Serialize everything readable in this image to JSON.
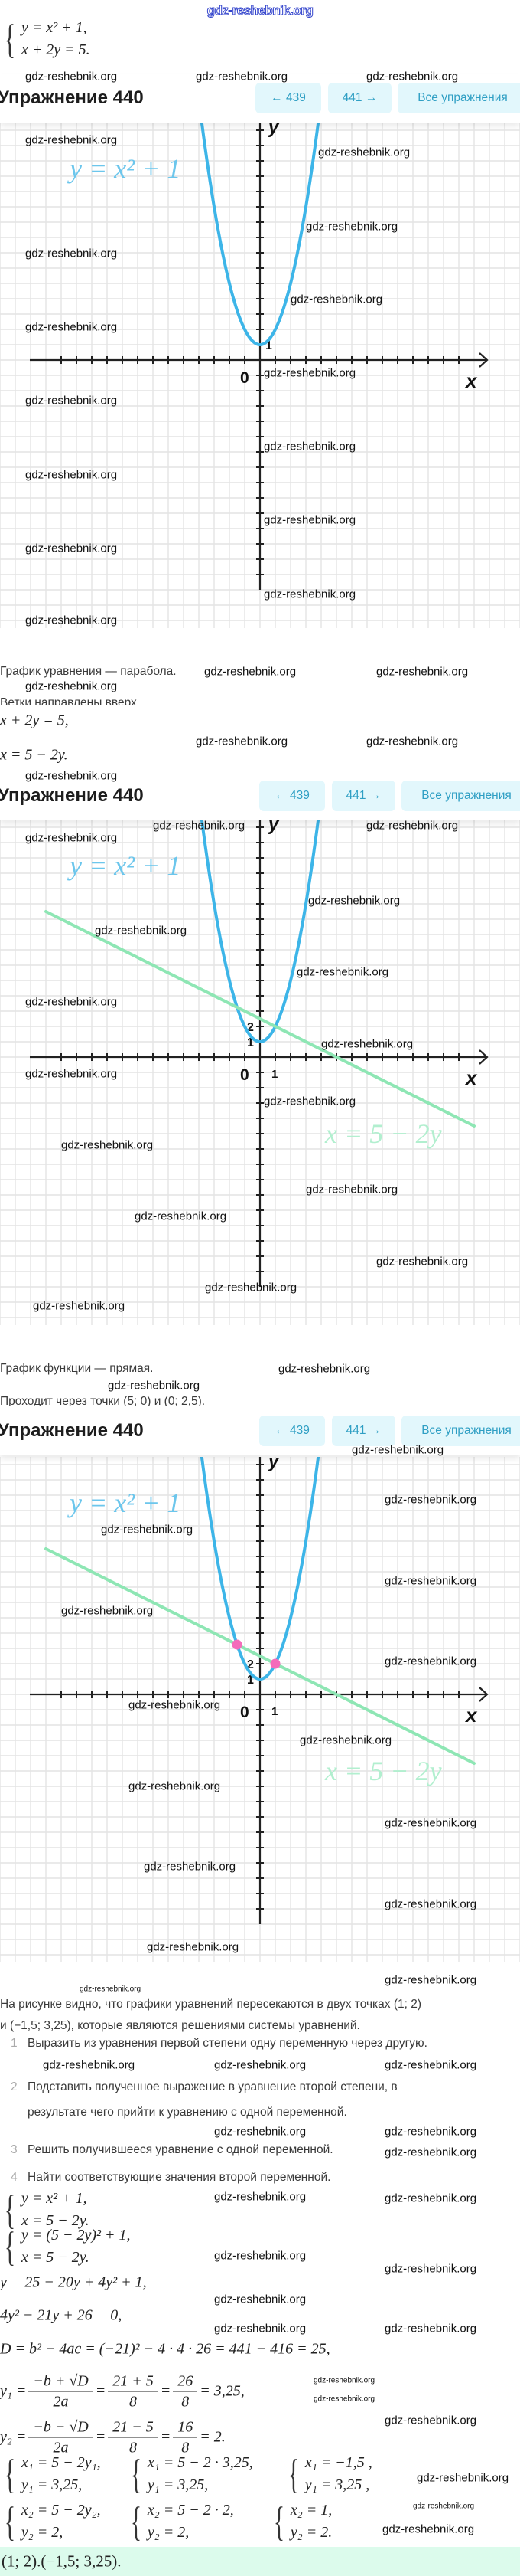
{
  "watermark": {
    "text": "gdz-reshebnik.org",
    "top_color": "#3344cc"
  },
  "header": {
    "title": "Упражнение 440",
    "prev": "← 439",
    "next": "441 →",
    "all": "Все упражнения",
    "button_bg": "#e2f7fc",
    "button_text": "#2f9fc4"
  },
  "intro_system": [
    "y = x² + 1,",
    "x + 2y = 5."
  ],
  "after_graph1": {
    "line1": "График уравнения — парабола.",
    "line2": "Ветки направлены вверх.",
    "eq1": "x + 2y = 5,",
    "eq2": "x = 5 − 2y."
  },
  "after_graph2": {
    "line1": "График функции — прямая.",
    "line2": "Проходит через точки (5; 0) и (0; 2,5)."
  },
  "conclusion": {
    "line1": "На рисунке видно, что графики уравнений пересекаются в двух точках (1; 2)",
    "line2": "и (−1,5; 3,25), которые являются решениями системы уравнений."
  },
  "steps": [
    {
      "n": "1",
      "text": "Выразить из уравнения первой степени одну переменную через другую."
    },
    {
      "n": "2",
      "text": "Подставить полученное выражение в уравнение второй степени, в",
      "text2": "результате чего прийти к уравнению с одной переменной."
    },
    {
      "n": "3",
      "text": "Решить получившееся уравнение с одной переменной."
    },
    {
      "n": "4",
      "text": "Найти соответствующие значения второй переменной."
    }
  ],
  "solution": {
    "system_a": [
      "y = x² + 1,",
      "x = 5 − 2y."
    ],
    "system_b": [
      "y = (5 − 2y)² + 1,",
      "x = 5 − 2y."
    ],
    "expanded": "y = 25 − 20y + 4y² + 1,",
    "quadratic": "4y² − 21y + 26 = 0,",
    "discriminant": "D = b² − 4ac = (−21)² − 4 · 4 · 26 = 441 − 416 = 25,",
    "y1": {
      "lhs": "y₁ =",
      "f1n": "−b + √D",
      "f1d": "2a",
      "f2n": "21 + 5",
      "f2d": "8",
      "f3n": "26",
      "f3d": "8",
      "rest": "= 3,25,"
    },
    "y2": {
      "lhs": "y₂ =",
      "f1n": "−b − √D",
      "f1d": "2a",
      "f2n": "21 − 5",
      "f2d": "8",
      "f3n": "16",
      "f3d": "8",
      "rest": "= 2."
    },
    "x1_systems": [
      [
        "x₁ = 5 − 2y₁,",
        "y₁ = 3,25,"
      ],
      [
        "x₁ = 5 − 2 · 3,25,",
        "y₁ = 3,25,"
      ],
      [
        "x₁ = −1,5 ,",
        "y₁ = 3,25 ,"
      ]
    ],
    "x2_systems": [
      [
        "x₂ = 5 − 2y₂,",
        "y₂ = 2,"
      ],
      [
        "x₂ = 5 − 2 · 2,",
        "y₂ = 2,"
      ],
      [
        "x₂ = 1,",
        "y₂ = 2."
      ]
    ],
    "answer": "(1; 2).(−1,5; 3,25).",
    "answer_bg": "#dcfbec"
  },
  "chart_data": [
    {
      "type": "line",
      "x_axis_label": "x",
      "y_axis_label": "y",
      "origin_label": "0",
      "xlim": [
        -17,
        17
      ],
      "ylim": [
        -15.5,
        15.5
      ],
      "grid": true,
      "x_tick_labels": [],
      "y_tick_labels": [
        {
          "value": 1,
          "label": "1"
        }
      ],
      "series": [
        {
          "name": "y = x² + 1",
          "kind": "parabola",
          "a": 1,
          "b": 0,
          "c": 1,
          "color": "#3db5e8",
          "label_color": "#6cc6ec"
        }
      ],
      "points": []
    },
    {
      "type": "line",
      "x_axis_label": "x",
      "y_axis_label": "y",
      "origin_label": "0",
      "xlim": [
        -17,
        17
      ],
      "ylim": [
        -15.5,
        15.5
      ],
      "grid": true,
      "x_tick_labels": [
        {
          "value": 1,
          "label": "1"
        }
      ],
      "y_tick_labels": [
        {
          "value": 1,
          "label": "1"
        },
        {
          "value": 2,
          "label": "2"
        }
      ],
      "series": [
        {
          "name": "y = x² + 1",
          "kind": "parabola",
          "a": 1,
          "b": 0,
          "c": 1,
          "color": "#3db5e8",
          "label_color": "#6cc6ec"
        },
        {
          "name": "x = 5 − 2y",
          "kind": "line",
          "slope": -0.5,
          "intercept": 2.5,
          "x_from": -14,
          "x_to": 14,
          "color": "#8ee6b4",
          "label_color": "#b2efcf"
        }
      ],
      "points": []
    },
    {
      "type": "line",
      "x_axis_label": "x",
      "y_axis_label": "y",
      "origin_label": "0",
      "xlim": [
        -17,
        17
      ],
      "ylim": [
        -15.5,
        15.5
      ],
      "grid": true,
      "x_tick_labels": [
        {
          "value": 1,
          "label": "1"
        }
      ],
      "y_tick_labels": [
        {
          "value": 1,
          "label": "1"
        },
        {
          "value": 2,
          "label": "2"
        }
      ],
      "series": [
        {
          "name": "y = x² + 1",
          "kind": "parabola",
          "a": 1,
          "b": 0,
          "c": 1,
          "color": "#3db5e8",
          "label_color": "#6cc6ec"
        },
        {
          "name": "x = 5 − 2y",
          "kind": "line",
          "slope": -0.5,
          "intercept": 2.5,
          "x_from": -14,
          "x_to": 14,
          "color": "#8ee6b4",
          "label_color": "#b2efcf"
        }
      ],
      "points": [
        {
          "x": -1.5,
          "y": 3.25,
          "color": "#f46cba"
        },
        {
          "x": 1,
          "y": 2,
          "color": "#f46cba"
        }
      ]
    }
  ]
}
